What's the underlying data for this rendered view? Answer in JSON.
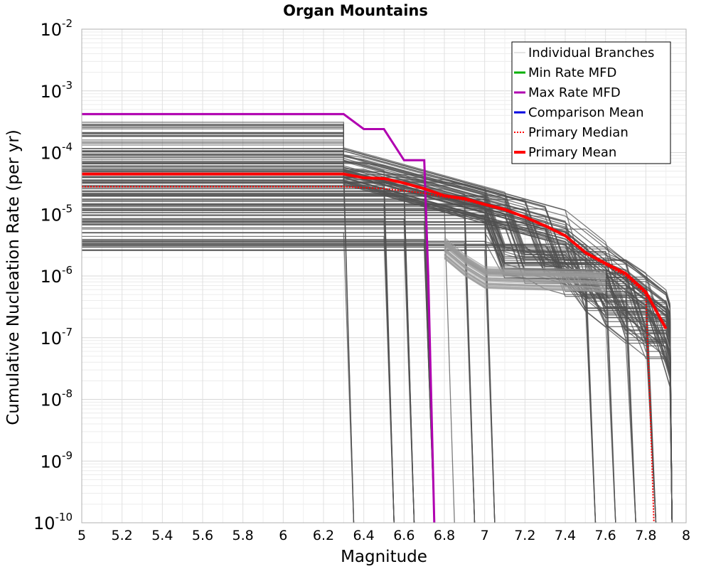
{
  "chart_data": {
    "type": "line",
    "title": "Organ Mountains",
    "xlabel": "Magnitude",
    "ylabel": "Cumulative Nucleation Rate (per yr)",
    "xlim": [
      5,
      8
    ],
    "ylim": [
      1e-10,
      0.01
    ],
    "yscale": "log",
    "grid": true,
    "legend_position": "top-right",
    "x_ticks": [
      "5",
      "5.2",
      "5.4",
      "5.6",
      "5.8",
      "6",
      "6.2",
      "6.4",
      "6.6",
      "6.8",
      "7",
      "7.2",
      "7.4",
      "7.6",
      "7.8",
      "8"
    ],
    "y_ticks": [
      {
        "base": "10",
        "exp": "-10",
        "value": 1e-10
      },
      {
        "base": "10",
        "exp": "-9",
        "value": 1e-09
      },
      {
        "base": "10",
        "exp": "-8",
        "value": 1e-08
      },
      {
        "base": "10",
        "exp": "-7",
        "value": 1e-07
      },
      {
        "base": "10",
        "exp": "-6",
        "value": 1e-06
      },
      {
        "base": "10",
        "exp": "-5",
        "value": 1e-05
      },
      {
        "base": "10",
        "exp": "-4",
        "value": 0.0001
      },
      {
        "base": "10",
        "exp": "-3",
        "value": 0.001
      },
      {
        "base": "10",
        "exp": "-2",
        "value": 0.01
      }
    ],
    "legend": [
      {
        "label": "Individual Branches",
        "color": "#c8c8c8",
        "style": "solid"
      },
      {
        "label": "Min Rate MFD",
        "color": "#00b000",
        "style": "solid"
      },
      {
        "label": "Max Rate MFD",
        "color": "#b000b0",
        "style": "solid"
      },
      {
        "label": "Comparison Mean",
        "color": "#0000e0",
        "style": "solid"
      },
      {
        "label": "Primary Median",
        "color": "#ff0000",
        "style": "dotted"
      },
      {
        "label": "Primary Mean",
        "color": "#ff0000",
        "style": "solid"
      }
    ],
    "branch_color": "#505050",
    "series": [
      {
        "name": "Max Rate MFD",
        "color": "#b000b0",
        "x": [
          5.0,
          6.3,
          6.4,
          6.5,
          6.6,
          6.7,
          6.72,
          6.75
        ],
        "y": [
          0.00042,
          0.00042,
          0.00024,
          0.00024,
          7.5e-05,
          7.5e-05,
          1e-06,
          1e-10
        ]
      },
      {
        "name": "Primary Mean",
        "color": "#ff0000",
        "x": [
          5.0,
          6.3,
          6.4,
          6.5,
          6.6,
          6.7,
          6.8,
          6.9,
          7.0,
          7.1,
          7.2,
          7.3,
          7.4,
          7.5,
          7.6,
          7.7,
          7.8,
          7.9
        ],
        "y": [
          4.5e-05,
          4.5e-05,
          3.9e-05,
          3.8e-05,
          3.2e-05,
          2.6e-05,
          2e-05,
          1.8e-05,
          1.45e-05,
          1.2e-05,
          9e-06,
          6.5e-06,
          4.5e-06,
          2.4e-06,
          1.6e-06,
          1.1e-06,
          5.5e-07,
          1.4e-07
        ]
      },
      {
        "name": "Primary Median",
        "color": "#ff0000",
        "x": [
          5.0,
          6.3,
          6.4,
          6.5,
          6.6,
          6.7,
          6.8,
          6.9,
          7.0,
          7.1,
          7.2,
          7.3,
          7.4,
          7.5,
          7.6,
          7.7,
          7.8,
          7.82,
          7.84
        ],
        "y": [
          2.8e-05,
          2.8e-05,
          2.7e-05,
          2.6e-05,
          2.4e-05,
          2.2e-05,
          1.9e-05,
          1.7e-05,
          1.4e-05,
          1.15e-05,
          8.8e-06,
          6.3e-06,
          4.4e-06,
          2.3e-06,
          1.5e-06,
          1e-06,
          5e-07,
          1e-08,
          1e-10
        ]
      }
    ]
  }
}
